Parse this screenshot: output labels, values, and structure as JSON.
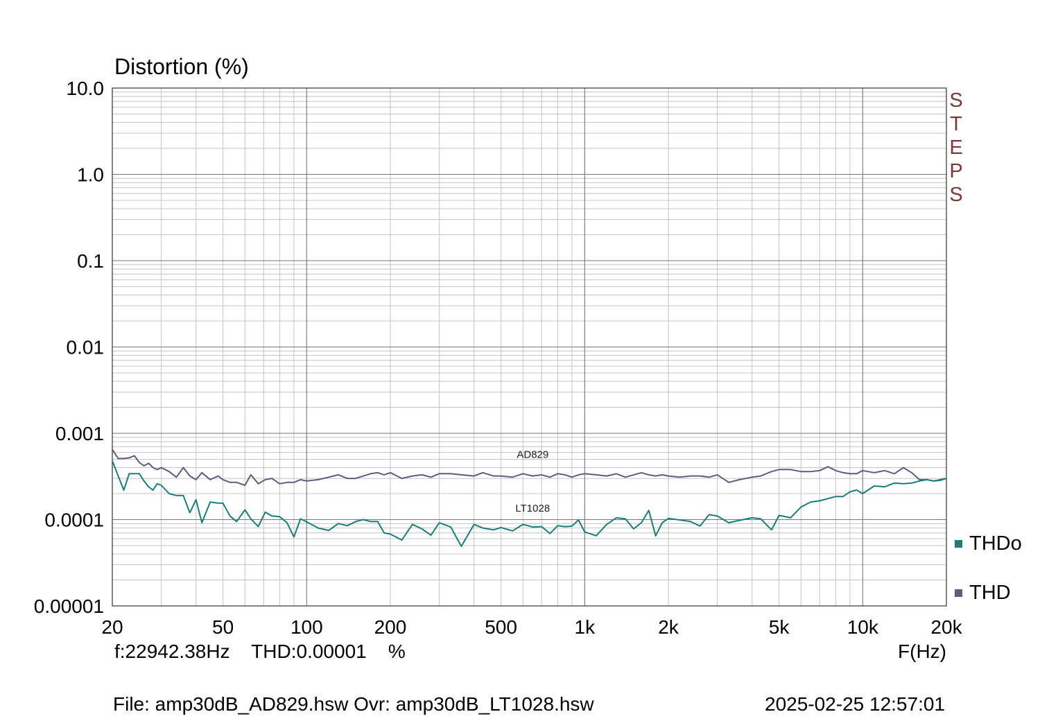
{
  "chart_data": {
    "type": "line",
    "title": "",
    "ylabel": "Distortion (%)",
    "xlabel": "F(Hz)",
    "xscale": "log",
    "yscale": "log",
    "xlim": [
      20,
      20000
    ],
    "ylim": [
      1e-05,
      10
    ],
    "grid": true,
    "x_ticks": [
      20,
      50,
      100,
      200,
      500,
      1000,
      2000,
      5000,
      10000,
      20000
    ],
    "x_tick_labels": [
      "20",
      "50",
      "100",
      "200",
      "500",
      "1k",
      "2k",
      "5k",
      "10k",
      "20k"
    ],
    "y_ticks": [
      10,
      1,
      0.1,
      0.01,
      0.001,
      0.0001,
      1e-05
    ],
    "y_tick_labels": [
      "10.0",
      "1.0",
      "0.1",
      "0.01",
      "0.001",
      "0.0001",
      "0.00001"
    ],
    "legend_position": "right",
    "annotations": [
      {
        "text": "AD829",
        "x": 650,
        "y": 0.00052
      },
      {
        "text": "LT1028",
        "x": 650,
        "y": 0.000124
      }
    ],
    "series": [
      {
        "name": "THD",
        "color": "#5e5d7e",
        "x": [
          20,
          21,
          22,
          23,
          24,
          25,
          26,
          27,
          28,
          29,
          30,
          32,
          34,
          36,
          38,
          40,
          42,
          45,
          48,
          50,
          53,
          56,
          60,
          63,
          67,
          71,
          75,
          80,
          85,
          90,
          95,
          100,
          110,
          120,
          130,
          140,
          150,
          160,
          170,
          180,
          190,
          200,
          220,
          240,
          260,
          280,
          300,
          330,
          360,
          400,
          430,
          470,
          500,
          550,
          600,
          650,
          700,
          750,
          800,
          850,
          900,
          950,
          1000,
          1100,
          1200,
          1300,
          1400,
          1500,
          1600,
          1700,
          1800,
          1900,
          2000,
          2200,
          2400,
          2600,
          2800,
          3000,
          3300,
          3600,
          4000,
          4300,
          4700,
          5000,
          5500,
          6000,
          6500,
          7000,
          7500,
          8000,
          8500,
          9000,
          9500,
          10000,
          11000,
          12000,
          13000,
          14000,
          15000,
          16000,
          17000,
          18000,
          19000,
          20000
        ],
        "values": [
          0.00065,
          0.00051,
          0.00051,
          0.00052,
          0.00055,
          0.00046,
          0.00042,
          0.00045,
          0.0004,
          0.00038,
          0.0004,
          0.00036,
          0.00031,
          0.0004,
          0.00032,
          0.00029,
          0.00035,
          0.00029,
          0.00032,
          0.00029,
          0.00027,
          0.00027,
          0.00025,
          0.00033,
          0.00026,
          0.00029,
          0.0003,
          0.00026,
          0.00027,
          0.00027,
          0.00029,
          0.00028,
          0.00029,
          0.00031,
          0.00033,
          0.0003,
          0.0003,
          0.00032,
          0.00034,
          0.00035,
          0.00033,
          0.00035,
          0.0003,
          0.00032,
          0.00033,
          0.00031,
          0.00034,
          0.00034,
          0.00033,
          0.00032,
          0.00035,
          0.00032,
          0.00032,
          0.00031,
          0.00034,
          0.00032,
          0.00033,
          0.00031,
          0.00034,
          0.00033,
          0.00031,
          0.00033,
          0.00034,
          0.00033,
          0.00032,
          0.00034,
          0.00031,
          0.00033,
          0.00035,
          0.00033,
          0.00032,
          0.00033,
          0.00032,
          0.00031,
          0.00032,
          0.00032,
          0.00031,
          0.00033,
          0.00027,
          0.00029,
          0.00031,
          0.00032,
          0.00036,
          0.00038,
          0.00038,
          0.00036,
          0.00036,
          0.00037,
          0.00041,
          0.00037,
          0.00035,
          0.00034,
          0.00034,
          0.00037,
          0.00035,
          0.00037,
          0.00034,
          0.0004,
          0.00035,
          0.00029,
          0.00029,
          0.00028,
          0.00029,
          0.0003
        ]
      },
      {
        "name": "THDo",
        "color": "#1a7d78",
        "x": [
          20,
          21,
          22,
          23,
          24,
          25,
          26,
          27,
          28,
          29,
          30,
          32,
          34,
          36,
          38,
          40,
          42,
          45,
          48,
          50,
          53,
          56,
          60,
          63,
          67,
          71,
          75,
          80,
          85,
          90,
          95,
          100,
          110,
          120,
          130,
          140,
          150,
          160,
          170,
          180,
          190,
          200,
          220,
          240,
          260,
          280,
          300,
          330,
          360,
          400,
          430,
          470,
          500,
          550,
          600,
          650,
          700,
          750,
          800,
          850,
          900,
          950,
          1000,
          1100,
          1200,
          1300,
          1400,
          1500,
          1600,
          1700,
          1800,
          1900,
          2000,
          2200,
          2400,
          2600,
          2800,
          3000,
          3300,
          3600,
          4000,
          4300,
          4700,
          5000,
          5500,
          6000,
          6500,
          7000,
          7500,
          8000,
          8500,
          9000,
          9500,
          10000,
          11000,
          12000,
          13000,
          14000,
          15000,
          16000,
          17000,
          18000,
          19000,
          20000
        ],
        "values": [
          0.00048,
          0.00032,
          0.00022,
          0.00034,
          0.00034,
          0.00034,
          0.00028,
          0.00024,
          0.00022,
          0.00026,
          0.00025,
          0.0002,
          0.00019,
          0.00019,
          0.00012,
          0.00017,
          9.2e-05,
          0.00016,
          0.000155,
          0.000155,
          0.00011,
          9.5e-05,
          0.00013,
          0.000102,
          8.3e-05,
          0.000122,
          0.00011,
          0.000108,
          9.2e-05,
          6.3e-05,
          0.000102,
          9.4e-05,
          8e-05,
          7.5e-05,
          9e-05,
          8.5e-05,
          9.5e-05,
          0.0001,
          9.5e-05,
          9.5e-05,
          7e-05,
          6.8e-05,
          5.8e-05,
          8.8e-05,
          7.8e-05,
          6.6e-05,
          9.2e-05,
          8.2e-05,
          4.9e-05,
          8.8e-05,
          8e-05,
          7.6e-05,
          8.1e-05,
          7.4e-05,
          8.8e-05,
          8.2e-05,
          8.3e-05,
          6.9e-05,
          8.5e-05,
          8.3e-05,
          8.4e-05,
          9.9e-05,
          7.2e-05,
          6.5e-05,
          8.8e-05,
          0.000105,
          0.000102,
          7.8e-05,
          9.2e-05,
          0.000128,
          6.5e-05,
          9.2e-05,
          0.000103,
          9.9e-05,
          9.5e-05,
          8.4e-05,
          0.000114,
          0.00011,
          9.2e-05,
          9.8e-05,
          0.000105,
          0.000102,
          7.6e-05,
          0.000112,
          0.000105,
          0.00014,
          0.00016,
          0.000165,
          0.000175,
          0.000185,
          0.000185,
          0.00021,
          0.00022,
          0.0002,
          0.000245,
          0.00024,
          0.000265,
          0.00026,
          0.000265,
          0.00028,
          0.00029,
          0.00028,
          0.000285,
          0.0003
        ]
      }
    ]
  },
  "readout": {
    "cursor_text": "f:22942.38Hz    THD:0.00001    %",
    "x_unit": "F(Hz)"
  },
  "footer": {
    "file_text": "File: amp30dB_AD829.hsw Ovr: amp30dB_LT1028.hsw",
    "date_text": "2025-02-25 12:57:01"
  },
  "logo": {
    "text": "STEPS",
    "color": "#7a3838"
  },
  "legend": {
    "items": [
      {
        "name": "THDo",
        "color": "#1a7d78"
      },
      {
        "name": "THD",
        "color": "#5e5d7e"
      }
    ]
  }
}
